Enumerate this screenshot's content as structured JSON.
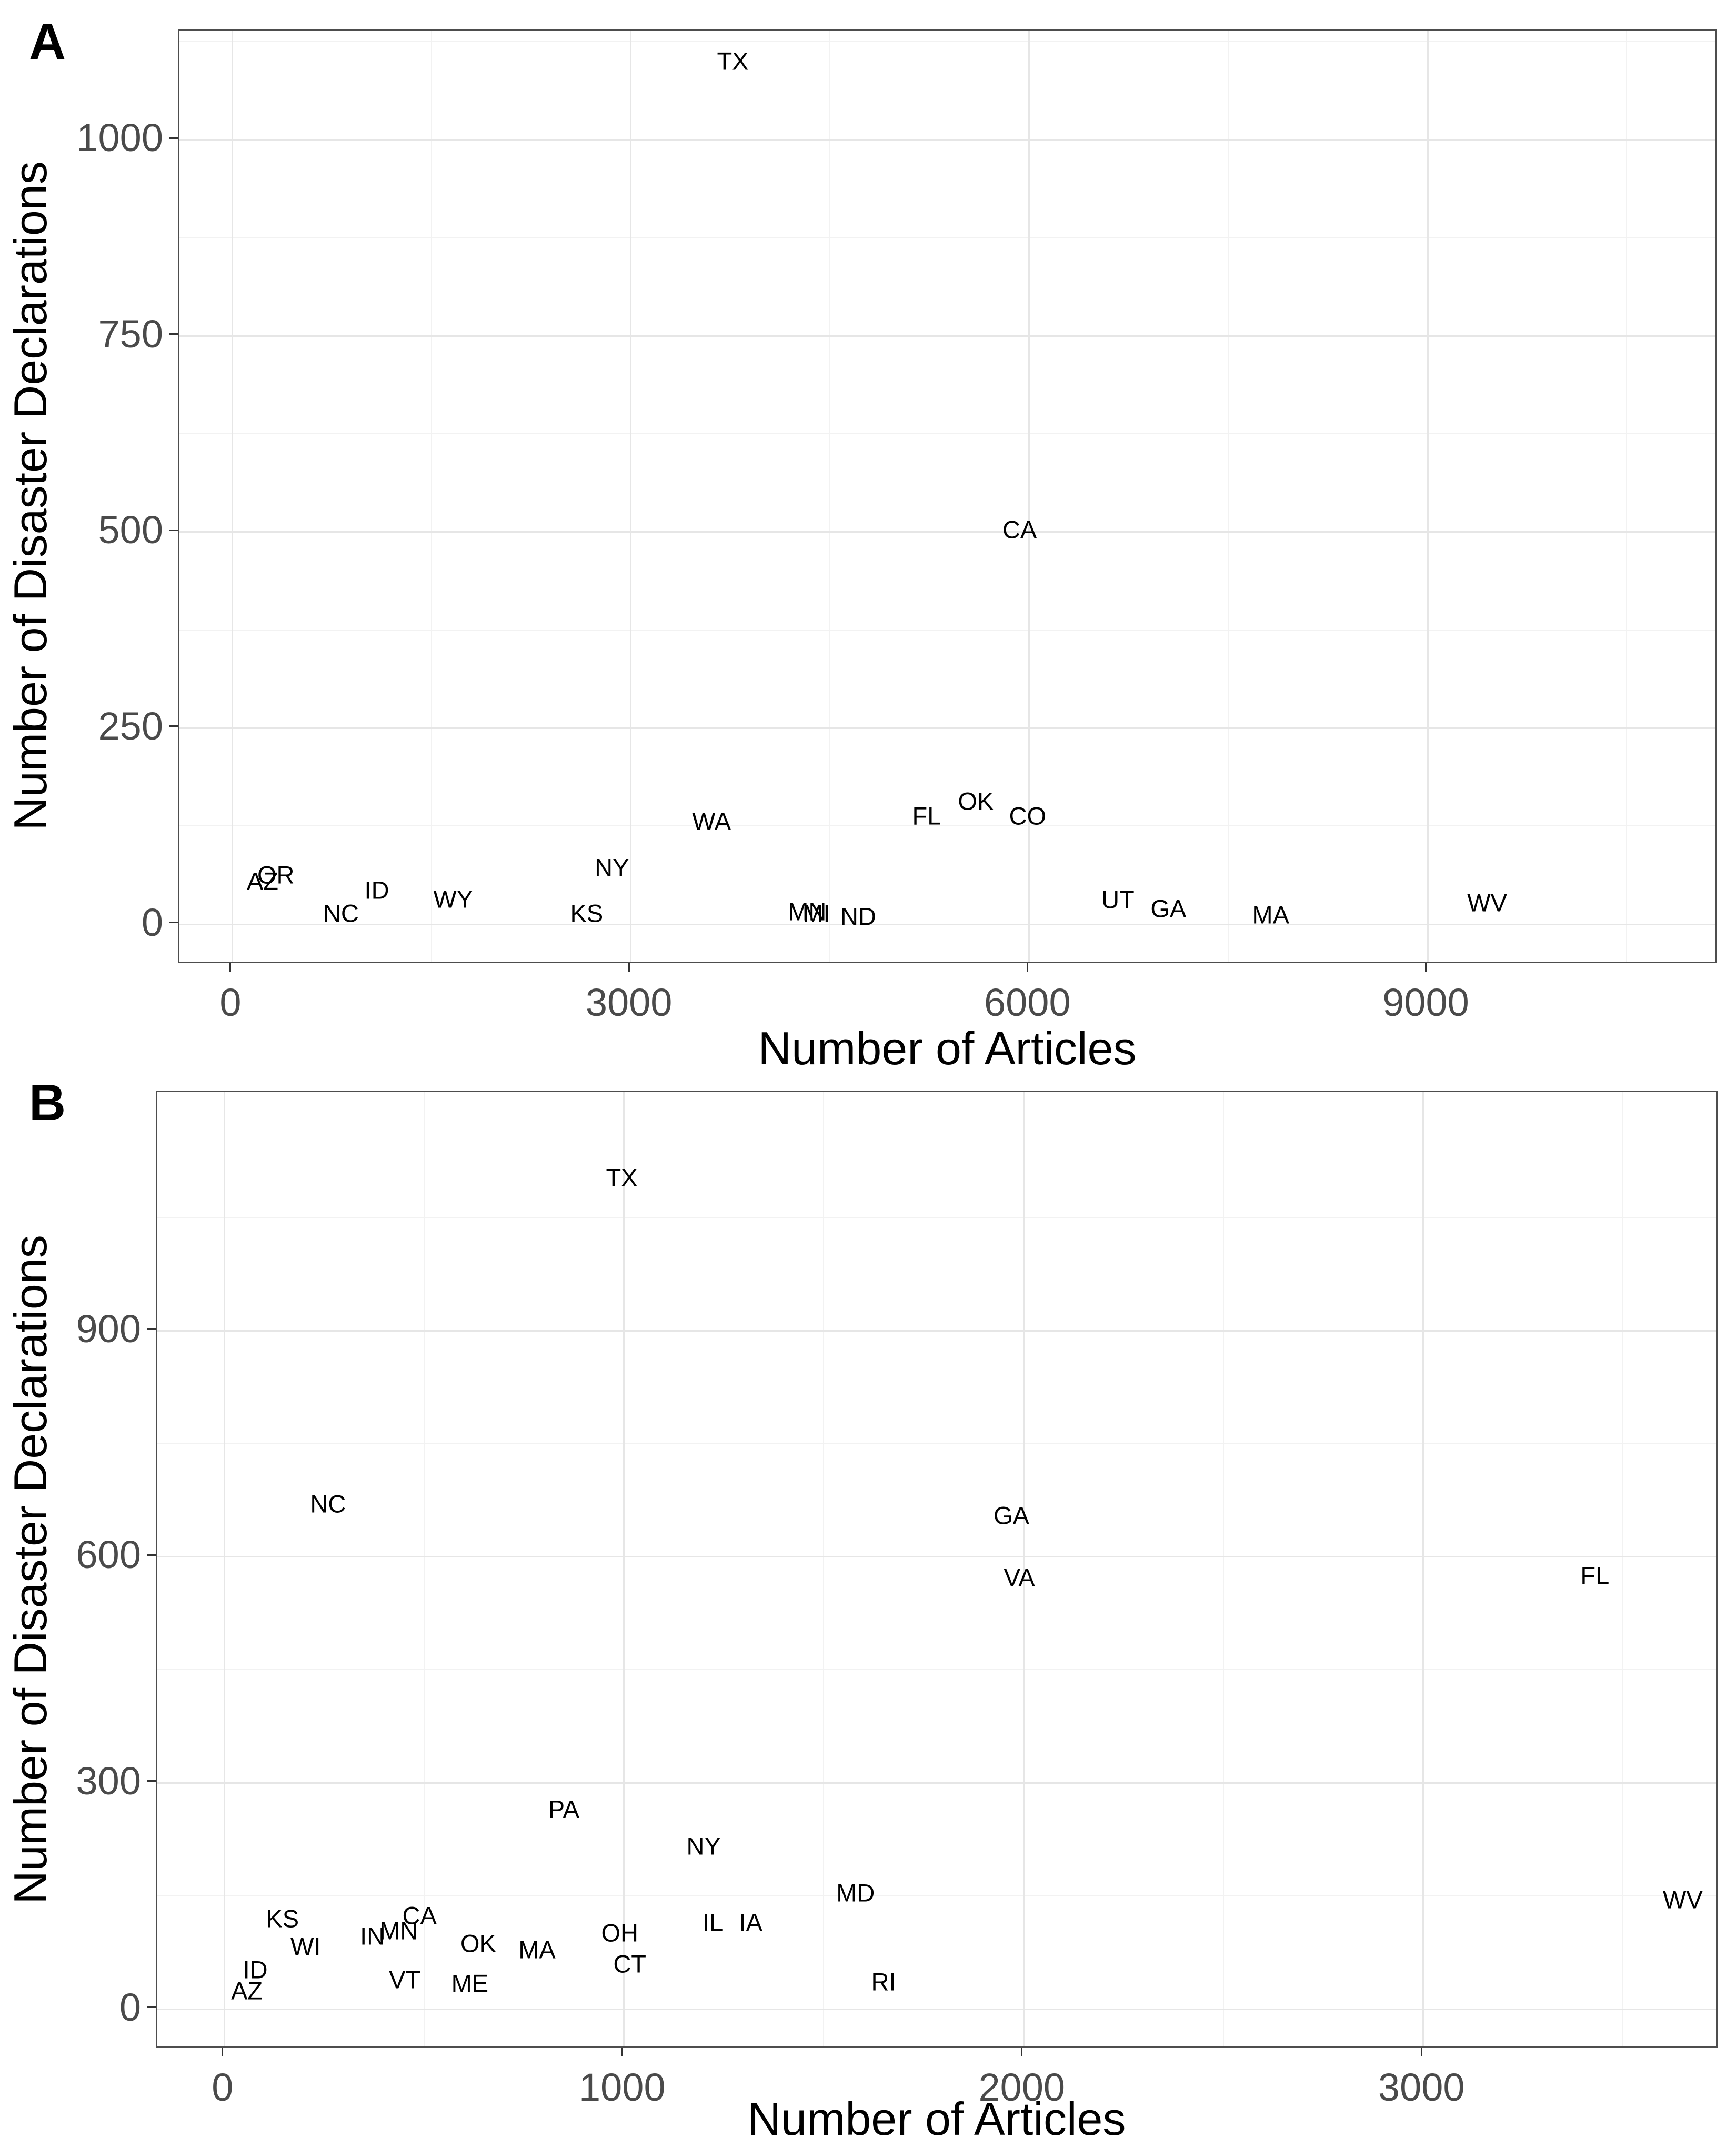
{
  "figure": {
    "background": "#ffffff",
    "panel_border_color": "#4d4d4d",
    "grid_major_color": "#e6e6e6",
    "grid_minor_color": "#f2f2f2",
    "tick_text_color": "#4a4a4a",
    "label_text_color": "#000000"
  },
  "chart_data": [
    {
      "type": "scatter",
      "panel_label": "A",
      "point_style": "text-label",
      "title": "",
      "xlabel": "Number of Articles",
      "ylabel": "Number of Disaster Declarations",
      "x_ticks": [
        0,
        3000,
        6000,
        9000
      ],
      "x_minor": [
        1500,
        4500,
        7500,
        10500
      ],
      "y_ticks": [
        0,
        250,
        500,
        750,
        1000
      ],
      "y_minor": [
        125,
        375,
        625,
        875,
        1125
      ],
      "xlim": [
        -396,
        11189
      ],
      "ylim": [
        -52,
        1139
      ],
      "grid": "major+minor",
      "legend": "none",
      "points": [
        {
          "label": "TX",
          "x": 3770,
          "y": 1100
        },
        {
          "label": "CA",
          "x": 5930,
          "y": 503
        },
        {
          "label": "WA",
          "x": 3610,
          "y": 131
        },
        {
          "label": "FL",
          "x": 5230,
          "y": 138
        },
        {
          "label": "OK",
          "x": 5600,
          "y": 157
        },
        {
          "label": "CO",
          "x": 5990,
          "y": 138
        },
        {
          "label": "NY",
          "x": 2860,
          "y": 72
        },
        {
          "label": "AZ",
          "x": 230,
          "y": 55
        },
        {
          "label": "OR",
          "x": 330,
          "y": 63
        },
        {
          "label": "ID",
          "x": 1090,
          "y": 43
        },
        {
          "label": "NC",
          "x": 820,
          "y": 14
        },
        {
          "label": "WY",
          "x": 1665,
          "y": 32
        },
        {
          "label": "KS",
          "x": 2670,
          "y": 14
        },
        {
          "label": "MN",
          "x": 4330,
          "y": 16
        },
        {
          "label": "MI",
          "x": 4400,
          "y": 14
        },
        {
          "label": "ND",
          "x": 4715,
          "y": 10
        },
        {
          "label": "UT",
          "x": 6670,
          "y": 31
        },
        {
          "label": "GA",
          "x": 7050,
          "y": 20
        },
        {
          "label": "MA",
          "x": 7820,
          "y": 12
        },
        {
          "label": "WV",
          "x": 9450,
          "y": 27
        }
      ]
    },
    {
      "type": "scatter",
      "panel_label": "B",
      "point_style": "text-label",
      "title": "",
      "xlabel": "Number of Articles",
      "ylabel": "Number of Disaster Declarations",
      "x_ticks": [
        0,
        1000,
        2000,
        3000
      ],
      "x_minor": [
        500,
        1500,
        2500,
        3500
      ],
      "y_ticks": [
        0,
        300,
        600,
        900
      ],
      "y_minor": [
        150,
        450,
        750,
        1050
      ],
      "xlim": [
        -167,
        3741
      ],
      "ylim": [
        -54,
        1216
      ],
      "grid": "major+minor",
      "legend": "none",
      "points": [
        {
          "label": "TX",
          "x": 995,
          "y": 1103
        },
        {
          "label": "NC",
          "x": 260,
          "y": 670
        },
        {
          "label": "GA",
          "x": 1970,
          "y": 655
        },
        {
          "label": "VA",
          "x": 1990,
          "y": 572
        },
        {
          "label": "FL",
          "x": 3430,
          "y": 575
        },
        {
          "label": "PA",
          "x": 850,
          "y": 265
        },
        {
          "label": "NY",
          "x": 1200,
          "y": 216
        },
        {
          "label": "MD",
          "x": 1580,
          "y": 154
        },
        {
          "label": "WV",
          "x": 3650,
          "y": 145
        },
        {
          "label": "IL",
          "x": 1223,
          "y": 115
        },
        {
          "label": "IA",
          "x": 1318,
          "y": 115
        },
        {
          "label": "OH",
          "x": 990,
          "y": 101
        },
        {
          "label": "CT",
          "x": 1015,
          "y": 60
        },
        {
          "label": "RI",
          "x": 1650,
          "y": 36
        },
        {
          "label": "CA",
          "x": 489,
          "y": 124
        },
        {
          "label": "KS",
          "x": 146,
          "y": 120
        },
        {
          "label": "MN",
          "x": 437,
          "y": 104
        },
        {
          "label": "IN",
          "x": 371,
          "y": 97
        },
        {
          "label": "OK",
          "x": 636,
          "y": 87
        },
        {
          "label": "WI",
          "x": 204,
          "y": 83
        },
        {
          "label": "MA",
          "x": 783,
          "y": 79
        },
        {
          "label": "VT",
          "x": 452,
          "y": 39
        },
        {
          "label": "ME",
          "x": 615,
          "y": 34
        },
        {
          "label": "ID",
          "x": 78,
          "y": 52
        },
        {
          "label": "AZ",
          "x": 57,
          "y": 24
        }
      ]
    }
  ]
}
